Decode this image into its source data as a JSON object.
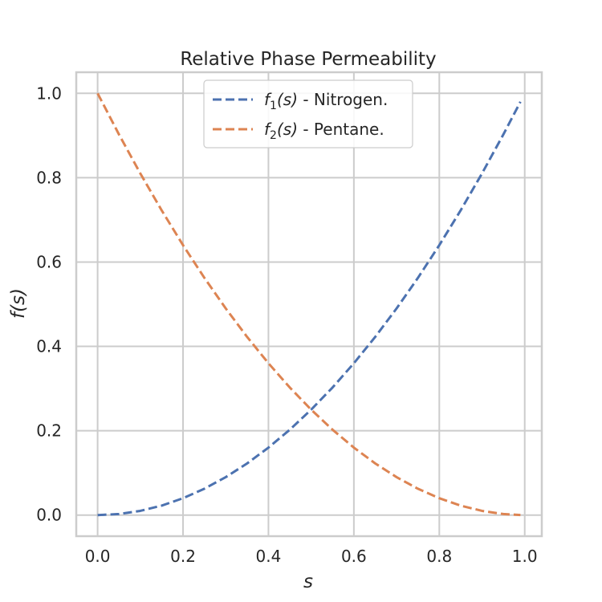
{
  "chart_data": {
    "type": "line",
    "title": "Relative Phase Permeability",
    "xlabel": "s",
    "ylabel": "f(s)",
    "xlim": [
      -0.05,
      1.04
    ],
    "ylim": [
      -0.05,
      1.05
    ],
    "xticks": [
      0.0,
      0.2,
      0.4,
      0.6,
      0.8,
      1.0
    ],
    "xtick_labels": [
      "0.0",
      "0.2",
      "0.4",
      "0.6",
      "0.8",
      "1.0"
    ],
    "yticks": [
      0.0,
      0.2,
      0.4,
      0.6,
      0.8,
      1.0
    ],
    "ytick_labels": [
      "0.0",
      "0.2",
      "0.4",
      "0.6",
      "0.8",
      "1.0"
    ],
    "grid": true,
    "legend_position": "top-center",
    "x": [
      0.0,
      0.05,
      0.1,
      0.15,
      0.2,
      0.25,
      0.3,
      0.35,
      0.4,
      0.45,
      0.5,
      0.55,
      0.6,
      0.65,
      0.7,
      0.75,
      0.8,
      0.85,
      0.9,
      0.95,
      0.99
    ],
    "series": [
      {
        "name": "f1(s) - Nitrogen.",
        "legend_func": "f",
        "legend_sub": "1",
        "legend_arg": "(s)",
        "legend_suffix": " - Nitrogen.",
        "color": "#4c72b0",
        "values": [
          0.0,
          0.0025,
          0.01,
          0.0225,
          0.04,
          0.0625,
          0.09,
          0.1225,
          0.16,
          0.2025,
          0.25,
          0.3025,
          0.36,
          0.4225,
          0.49,
          0.5625,
          0.64,
          0.7225,
          0.81,
          0.9025,
          0.98
        ]
      },
      {
        "name": "f2(s) - Pentane.",
        "legend_func": "f",
        "legend_sub": "2",
        "legend_arg": "(s)",
        "legend_suffix": " - Pentane.",
        "color": "#dd8452",
        "values": [
          1.0,
          0.9025,
          0.81,
          0.7225,
          0.64,
          0.5625,
          0.49,
          0.4225,
          0.36,
          0.3025,
          0.25,
          0.2025,
          0.16,
          0.1225,
          0.09,
          0.0625,
          0.04,
          0.0225,
          0.01,
          0.0025,
          0.0001
        ]
      }
    ]
  }
}
